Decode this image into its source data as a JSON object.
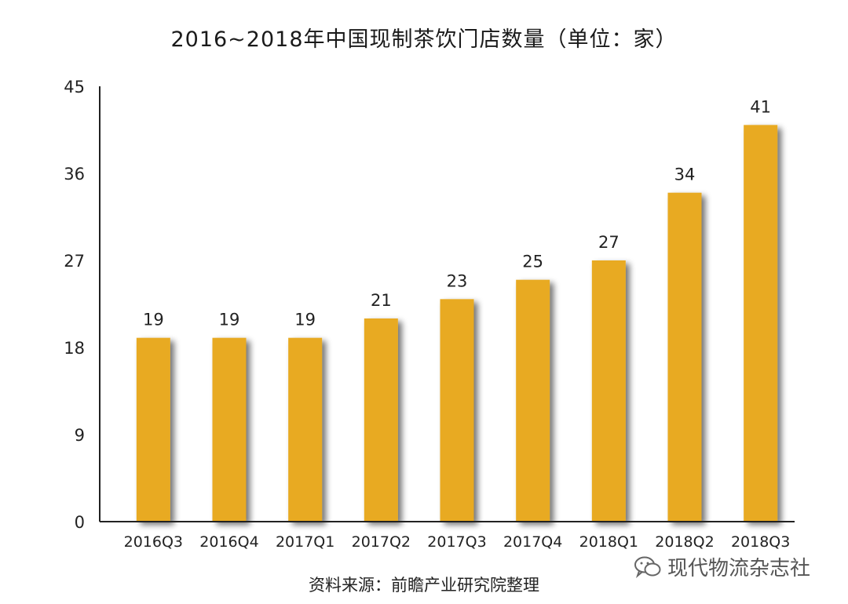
{
  "chart_data": {
    "type": "bar",
    "title": "2016~2018年中国现制茶饮门店数量（单位：家）",
    "categories": [
      "2016Q3",
      "2016Q4",
      "2017Q1",
      "2017Q2",
      "2017Q3",
      "2017Q4",
      "2018Q1",
      "2018Q2",
      "2018Q3"
    ],
    "values": [
      19,
      19,
      19,
      21,
      23,
      25,
      27,
      34,
      41
    ],
    "yticks": [
      0,
      9,
      18,
      27,
      36,
      45
    ],
    "ylim": [
      0,
      45
    ],
    "xlabel": "",
    "ylabel": "",
    "grid": false,
    "legend": "none",
    "bar_color": "#E8AA21",
    "shadow_color": "#8A8A8A"
  },
  "source": "资料来源：前瞻产业研究院整理",
  "watermark": {
    "text": "现代物流杂志社",
    "icon": "wechat-icon"
  }
}
